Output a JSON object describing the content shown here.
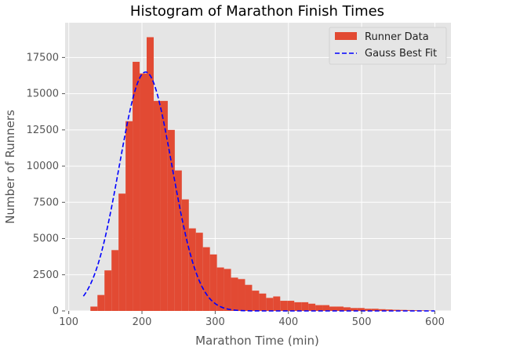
{
  "chart_data": {
    "type": "bar",
    "title": "Histogram of Marathon Finish Times",
    "xlabel": "Marathon Time (min)",
    "ylabel": "Number of Runners",
    "xlim": [
      95,
      622
    ],
    "ylim": [
      0,
      19900
    ],
    "xticks": [
      100,
      200,
      300,
      400,
      500,
      600
    ],
    "yticks": [
      0,
      2500,
      5000,
      7500,
      10000,
      12500,
      15000,
      17500
    ],
    "grid": true,
    "legend_position": "top-right",
    "bin_width": 9.6,
    "bin_start": 120,
    "series": [
      {
        "name": "Runner Data",
        "kind": "histogram",
        "color": "#E24A33",
        "values": [
          0,
          300,
          1100,
          2800,
          4200,
          8100,
          13100,
          17200,
          16400,
          18900,
          14500,
          14500,
          12500,
          9700,
          7700,
          5700,
          5400,
          4400,
          3900,
          3000,
          2900,
          2300,
          2200,
          1800,
          1400,
          1200,
          900,
          1000,
          700,
          700,
          600,
          600,
          500,
          400,
          400,
          300,
          300,
          250,
          200,
          200,
          150,
          150,
          120,
          100,
          80,
          70,
          60,
          50,
          40,
          30
        ]
      },
      {
        "name": "Gauss Best Fit",
        "kind": "line",
        "style": "dashed",
        "color": "#0000FF",
        "mean": 205,
        "sigma": 36,
        "peak": 16500,
        "x_range": [
          120,
          600
        ]
      }
    ]
  }
}
